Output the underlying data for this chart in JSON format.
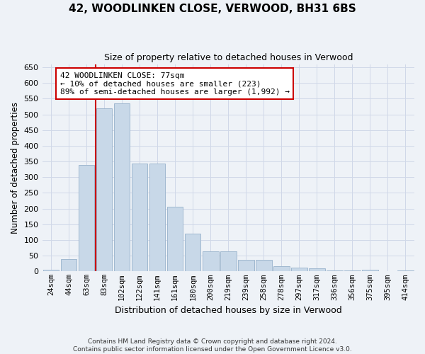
{
  "title": "42, WOODLINKEN CLOSE, VERWOOD, BH31 6BS",
  "subtitle": "Size of property relative to detached houses in Verwood",
  "xlabel": "Distribution of detached houses by size in Verwood",
  "ylabel": "Number of detached properties",
  "categories": [
    "24sqm",
    "44sqm",
    "63sqm",
    "83sqm",
    "102sqm",
    "122sqm",
    "141sqm",
    "161sqm",
    "180sqm",
    "200sqm",
    "219sqm",
    "239sqm",
    "258sqm",
    "278sqm",
    "297sqm",
    "317sqm",
    "336sqm",
    "356sqm",
    "375sqm",
    "395sqm",
    "414sqm"
  ],
  "values": [
    5,
    40,
    340,
    520,
    535,
    343,
    343,
    205,
    120,
    65,
    65,
    37,
    37,
    17,
    13,
    10,
    4,
    4,
    5,
    1,
    3
  ],
  "bar_color": "#c8d8e8",
  "bar_edge_color": "#a0b8d0",
  "grid_color": "#d0d8e8",
  "background_color": "#eef2f7",
  "vline_color": "#cc0000",
  "annotation_text": "42 WOODLINKEN CLOSE: 77sqm\n← 10% of detached houses are smaller (223)\n89% of semi-detached houses are larger (1,992) →",
  "annotation_box_color": "#ffffff",
  "annotation_border_color": "#cc0000",
  "ylim": [
    0,
    660
  ],
  "yticks": [
    0,
    50,
    100,
    150,
    200,
    250,
    300,
    350,
    400,
    450,
    500,
    550,
    600,
    650
  ],
  "footer_line1": "Contains HM Land Registry data © Crown copyright and database right 2024.",
  "footer_line2": "Contains public sector information licensed under the Open Government Licence v3.0."
}
